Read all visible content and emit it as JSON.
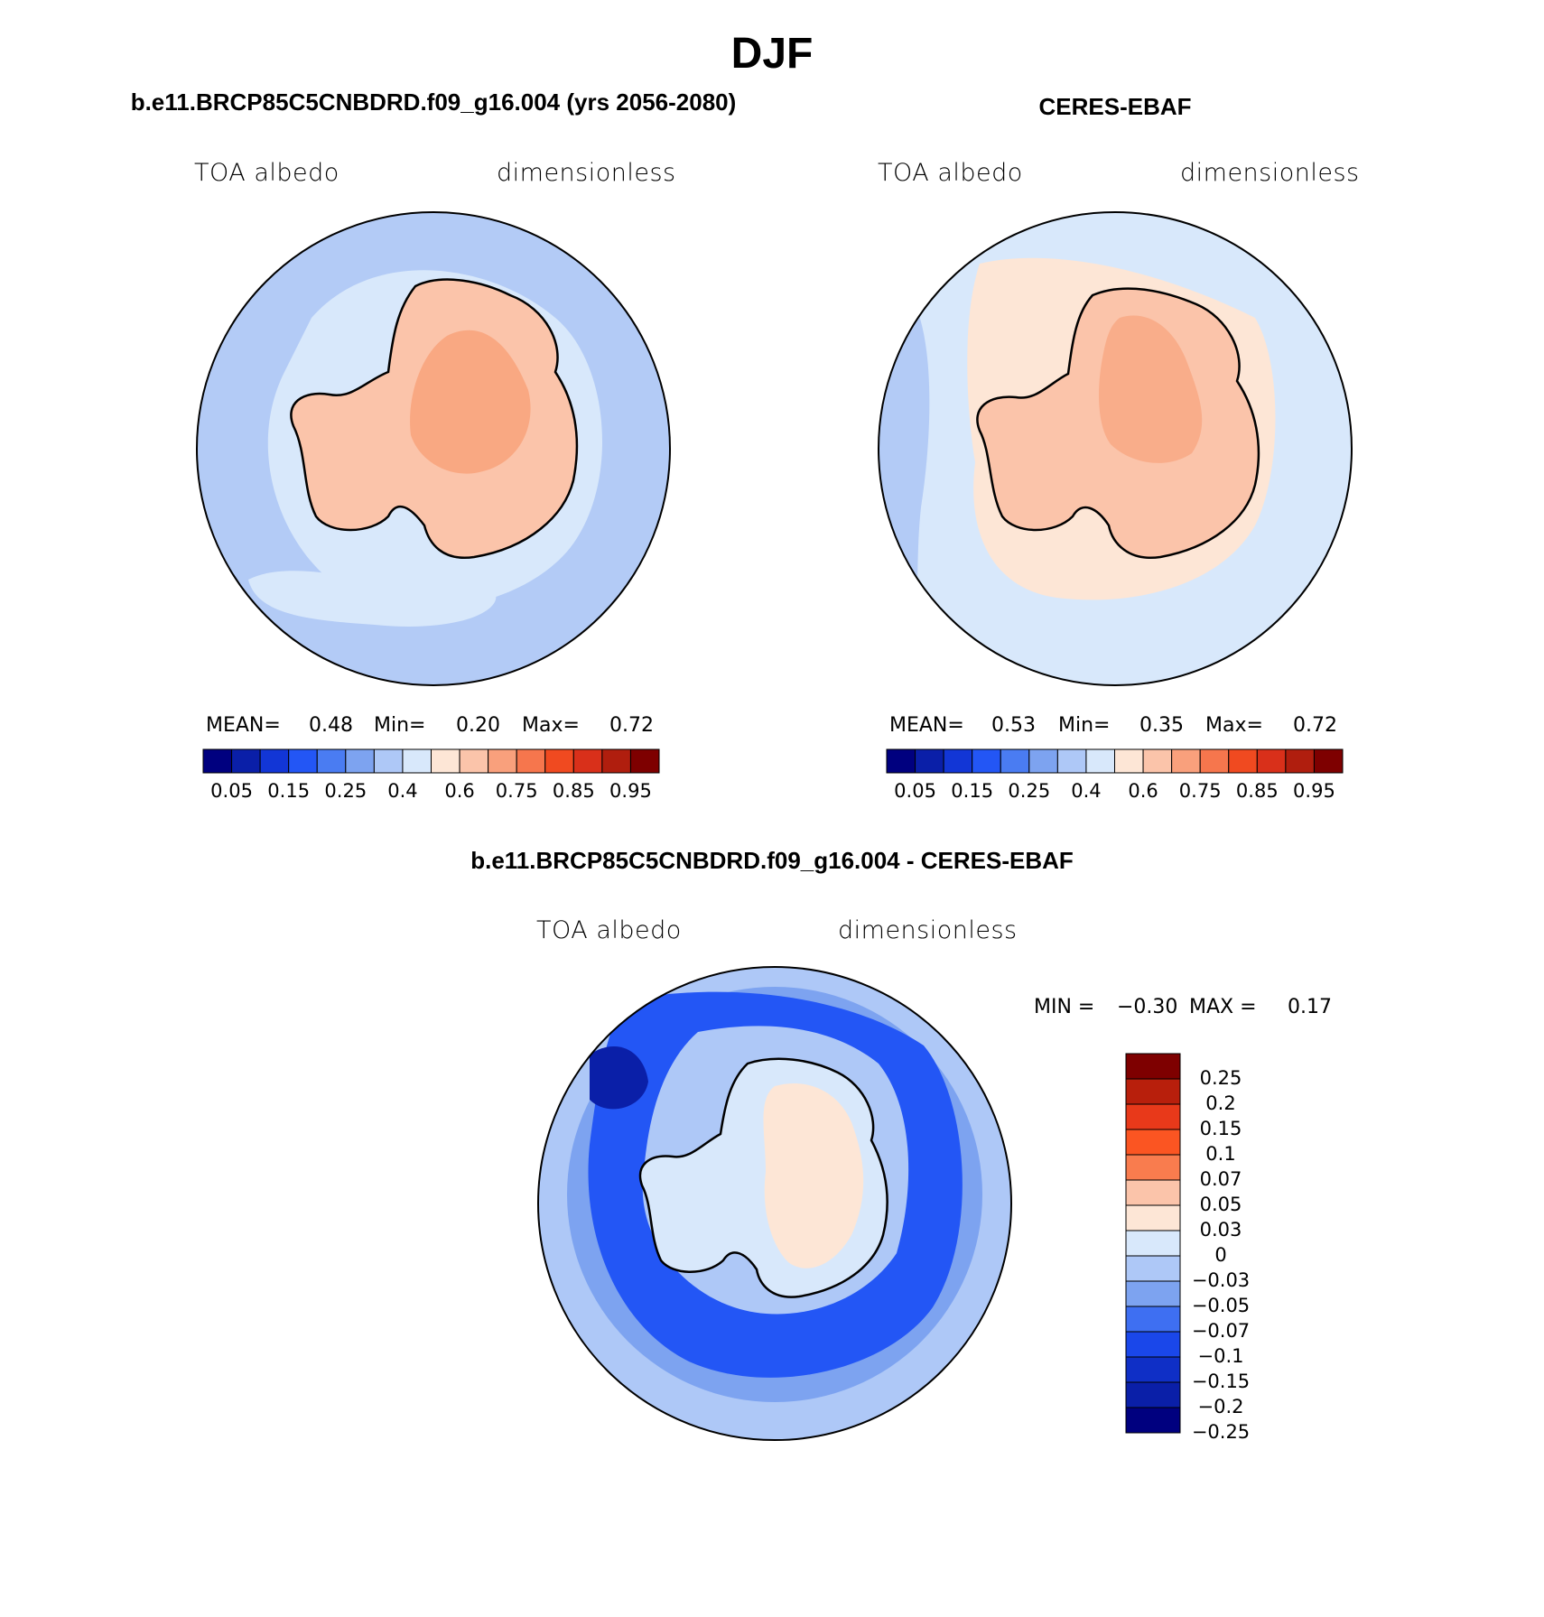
{
  "figure": {
    "title": "DJF"
  },
  "panels": {
    "model": {
      "heading": "b.e11.BRCP85C5CNBDRD.f09_g16.004 (yrs 2056-2080)",
      "left_label": "TOA albedo",
      "right_label": "dimensionless",
      "stats": {
        "mean_label": "MEAN=",
        "mean": "0.48",
        "min_label": "Min=",
        "min": "0.20",
        "max_label": "Max=",
        "max": "0.72"
      }
    },
    "obs": {
      "heading": "CERES-EBAF",
      "left_label": "TOA albedo",
      "right_label": "dimensionless",
      "stats": {
        "mean_label": "MEAN=",
        "mean": "0.53",
        "min_label": "Min=",
        "min": "0.35",
        "max_label": "Max=",
        "max": "0.72"
      }
    },
    "diff": {
      "heading": "b.e11.BRCP85C5CNBDRD.f09_g16.004 - CERES-EBAF",
      "left_label": "TOA albedo",
      "right_label": "dimensionless",
      "stats": {
        "min_label": "MIN =",
        "min": "−0.30",
        "max_label": "MAX =",
        "max": "0.17"
      }
    }
  },
  "colorbars": {
    "horizontal": {
      "colors": [
        "#00007f",
        "#0a1fa8",
        "#1236d6",
        "#2356f5",
        "#4a7cf2",
        "#7da3f0",
        "#aec8f7",
        "#d8e8fb",
        "#fde6d6",
        "#fbc4aa",
        "#f9a07c",
        "#f6764d",
        "#f04a20",
        "#d9301a",
        "#b01e0e",
        "#7e0000"
      ],
      "tick_labels": [
        "0.05",
        "0.15",
        "0.25",
        "0.4",
        "0.6",
        "0.75",
        "0.85",
        "0.95"
      ]
    },
    "vertical": {
      "colors_top_to_bottom": [
        "#7e0000",
        "#b81f0c",
        "#e8391a",
        "#fb5522",
        "#f97c4e",
        "#fbc4aa",
        "#fde6d6",
        "#d8e8fb",
        "#aec8f7",
        "#7da3f0",
        "#3e6ff2",
        "#1a47ea",
        "#0f2fc6",
        "#0a1fa8",
        "#00007f"
      ],
      "tick_labels": [
        "0.25",
        "0.2",
        "0.15",
        "0.1",
        "0.07",
        "0.05",
        "0.03",
        "0",
        "−0.03",
        "−0.05",
        "−0.07",
        "−0.1",
        "−0.15",
        "−0.2",
        "−0.25"
      ]
    }
  },
  "map_colors": {
    "model_ocean": "#b3cbf6",
    "model_ice_band": "#d8e8fb",
    "model_land": "#fbc4aa",
    "model_plateau": "#f9a882",
    "obs_ocean": "#d8e8fb",
    "obs_ice_band": "#fde6d6",
    "obs_land": "#fbc4aa",
    "obs_plateau": "#f9ad8a",
    "diff_outer": "#aec8f7",
    "diff_mid": "#7da3f0",
    "diff_ring": "#2356f5",
    "diff_land": "#d8e8fb",
    "diff_positive": "#fde6d6"
  }
}
